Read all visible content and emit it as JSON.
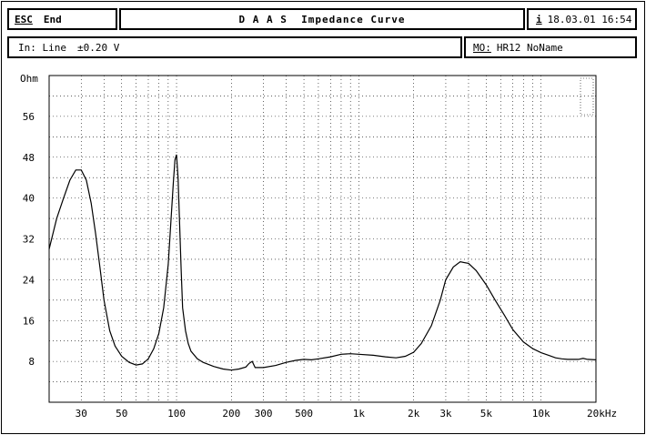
{
  "header": {
    "esc_label": "ESC",
    "end_label": "End",
    "title": "D A A S  Impedance Curve",
    "info_icon_label": "i",
    "date": "18.03.01 16:54"
  },
  "status": {
    "input_label": "In: Line",
    "input_level": "±0.20 V",
    "mo_label": "MO:",
    "model_name": "HR12 NoName"
  },
  "chart_data": {
    "type": "line",
    "title": "D A A S  Impedance Curve",
    "xlabel": "",
    "ylabel": "Ohm",
    "x_scale": "log",
    "xlim": [
      20,
      20000
    ],
    "ylim": [
      0,
      64
    ],
    "y_ticks": [
      "8",
      "16",
      "24",
      "32",
      "40",
      "48",
      "56"
    ],
    "y_unit_label": "Ohm",
    "x_ticks": [
      {
        "value": 30,
        "label": "30"
      },
      {
        "value": 50,
        "label": "50"
      },
      {
        "value": 100,
        "label": "100"
      },
      {
        "value": 200,
        "label": "200"
      },
      {
        "value": 300,
        "label": "300"
      },
      {
        "value": 500,
        "label": "500"
      },
      {
        "value": 1000,
        "label": "1k"
      },
      {
        "value": 2000,
        "label": "2k"
      },
      {
        "value": 3000,
        "label": "3k"
      },
      {
        "value": 5000,
        "label": "5k"
      },
      {
        "value": 10000,
        "label": "10k"
      },
      {
        "value": 20000,
        "label": "20kHz"
      }
    ],
    "grid": true,
    "series": [
      {
        "x": [
          20,
          22,
          24,
          26,
          28,
          30,
          32,
          34,
          36,
          38,
          40,
          43,
          46,
          50,
          55,
          60,
          65,
          70,
          75,
          80,
          85,
          90,
          93,
          96,
          98,
          100,
          102,
          104,
          106,
          108,
          112,
          116,
          120,
          130,
          140,
          160,
          180,
          200,
          220,
          240,
          250,
          260,
          270,
          300,
          350,
          400,
          450,
          500,
          550,
          600,
          700,
          800,
          900,
          1000,
          1200,
          1400,
          1600,
          1800,
          2000,
          2200,
          2500,
          2800,
          3000,
          3300,
          3600,
          4000,
          4400,
          5000,
          5600,
          6300,
          7000,
          8000,
          9000,
          10000,
          11000,
          12000,
          13000,
          14000,
          15000,
          16000,
          17000,
          18000,
          20000
        ],
        "y": [
          30,
          36,
          40,
          43.5,
          45.5,
          45.5,
          43.5,
          39,
          33,
          26.5,
          20,
          14,
          11,
          9,
          7.8,
          7.3,
          7.5,
          8.5,
          10.5,
          13.5,
          18.5,
          27,
          35,
          43,
          47.5,
          48.5,
          44,
          35,
          26,
          18.5,
          14,
          11.5,
          10,
          8.5,
          7.8,
          7,
          6.5,
          6.3,
          6.5,
          6.9,
          7.6,
          8,
          6.8,
          6.8,
          7.2,
          7.8,
          8.2,
          8.4,
          8.3,
          8.5,
          8.9,
          9.4,
          9.5,
          9.4,
          9.2,
          8.9,
          8.7,
          9,
          9.8,
          11.5,
          15,
          20,
          24,
          26.5,
          27.5,
          27.2,
          25.8,
          23,
          20,
          17,
          14.2,
          11.8,
          10.5,
          9.7,
          9.2,
          8.7,
          8.5,
          8.4,
          8.4,
          8.4,
          8.6,
          8.4,
          8.3
        ]
      }
    ]
  }
}
